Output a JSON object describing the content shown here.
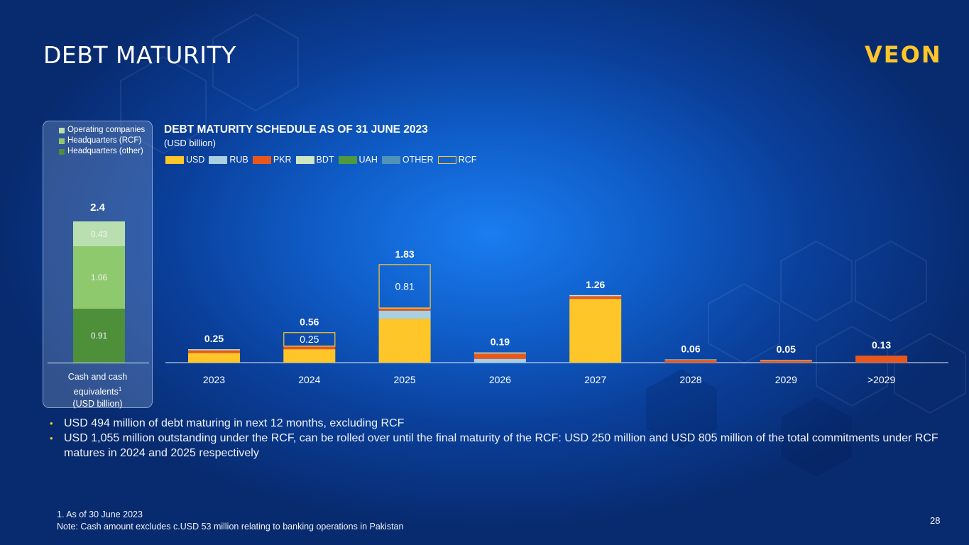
{
  "page": {
    "title": "DEBT MATURITY",
    "logo": "VEON",
    "page_number": "28"
  },
  "cash": {
    "legend": [
      {
        "label": "Operating companies",
        "color": "#b9dfb0"
      },
      {
        "label": "Headquarters (RCF)",
        "color": "#8fc96e"
      },
      {
        "label": "Headquarters (other)",
        "color": "#4e8f3a"
      }
    ],
    "total": "2.4",
    "segments": [
      {
        "name": "Headquarters (other)",
        "value": 0.91,
        "label": "0.91",
        "color": "#4e8f3a"
      },
      {
        "name": "Headquarters (RCF)",
        "value": 1.06,
        "label": "1.06",
        "color": "#8fc96e"
      },
      {
        "name": "Operating companies",
        "value": 0.43,
        "label": "0.43",
        "color": "#b9dfb0"
      }
    ],
    "axis_label_line1": "Cash and cash",
    "axis_label_line2": "equivalents",
    "axis_label_sup": "1",
    "axis_label_line3": "(USD billion)"
  },
  "chart_data": {
    "type": "bar",
    "stacked": true,
    "title": "DEBT MATURITY SCHEDULE AS OF 31 JUNE 2023",
    "subtitle": "(USD billion)",
    "categories": [
      "2023",
      "2024",
      "2025",
      "2026",
      "2027",
      "2028",
      "2029",
      ">2029"
    ],
    "totals": [
      "0.25",
      "0.56",
      "1.83",
      "0.19",
      "1.26",
      "0.06",
      "0.05",
      "0.13"
    ],
    "series": [
      {
        "name": "USD",
        "color": "#ffc629",
        "values": [
          0.18,
          0.25,
          0.82,
          0.0,
          1.19,
          0.0,
          0.0,
          0.0
        ]
      },
      {
        "name": "RUB",
        "color": "#a9cfe0",
        "values": [
          0.0,
          0.0,
          0.15,
          0.07,
          0.0,
          0.0,
          0.0,
          0.0
        ]
      },
      {
        "name": "PKR",
        "color": "#e8581c",
        "values": [
          0.05,
          0.05,
          0.04,
          0.1,
          0.05,
          0.05,
          0.04,
          0.13
        ]
      },
      {
        "name": "BDT",
        "color": "#cfe6c3",
        "values": [
          0.02,
          0.01,
          0.01,
          0.02,
          0.02,
          0.01,
          0.01,
          0.0
        ]
      },
      {
        "name": "UAH",
        "color": "#4e9a3c",
        "values": [
          0.0,
          0.0,
          0.0,
          0.0,
          0.0,
          0.0,
          0.0,
          0.0
        ]
      },
      {
        "name": "OTHER",
        "color": "#4f93b8",
        "values": [
          0.0,
          0.0,
          0.0,
          0.0,
          0.0,
          0.0,
          0.0,
          0.0
        ]
      }
    ],
    "rcf": {
      "name": "RCF",
      "color": "#ffc629",
      "values": [
        0.0,
        0.25,
        0.81,
        0.0,
        0.0,
        0.0,
        0.0,
        0.0
      ],
      "labels": [
        "",
        "0.25",
        "0.81",
        "",
        "",
        "",
        "",
        ""
      ]
    },
    "xlabel": "",
    "ylabel": "",
    "ylim": [
      0,
      2.0
    ],
    "grid": false
  },
  "bullets": [
    "USD 494 million of debt maturing in next 12 months, excluding RCF",
    "USD 1,055 million outstanding under the RCF, can be rolled over until the final maturity of the RCF: USD 250 million and USD 805 million of the total commitments under RCF matures in 2024 and 2025 respectively"
  ],
  "footnote": {
    "line1": "1.    As of 30 June 2023",
    "line2": "Note: Cash amount excludes c.USD 53 million relating to banking operations in Pakistan"
  }
}
